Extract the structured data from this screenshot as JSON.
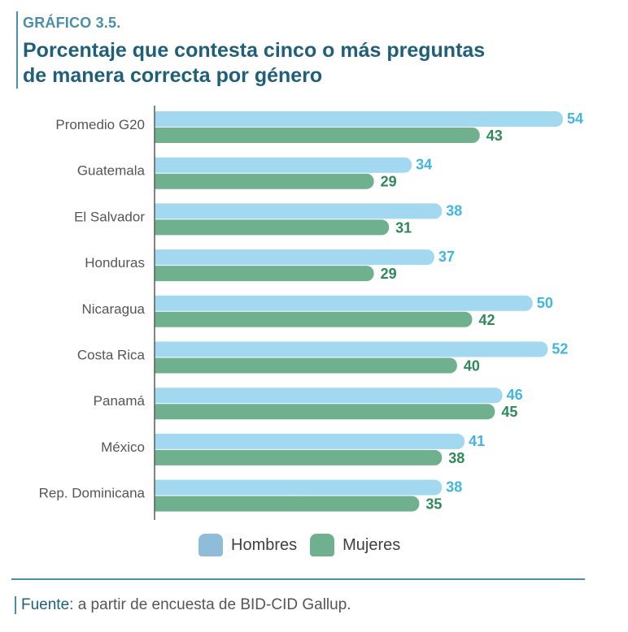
{
  "header": {
    "label": "GRÁFICO 3.5.",
    "title_line1": "Porcentaje que contesta cinco o más preguntas",
    "title_line2": "de manera correcta por género"
  },
  "colors": {
    "hombres_bar": "#a3d8f1",
    "hombres_text": "#41b6e0",
    "mujeres_bar": "#6fb08e",
    "mujeres_text": "#2e8a5a",
    "axis": "#5a5a5a",
    "category_text": "#555555"
  },
  "chart_data": {
    "type": "bar",
    "orientation": "horizontal",
    "categories": [
      "Promedio G20",
      "Guatemala",
      "El Salvador",
      "Honduras",
      "Nicaragua",
      "Costa Rica",
      "Panamá",
      "México",
      "Rep. Dominicana"
    ],
    "series": [
      {
        "name": "Hombres",
        "values": [
          54,
          34,
          38,
          37,
          50,
          52,
          46,
          41,
          38
        ]
      },
      {
        "name": "Mujeres",
        "values": [
          43,
          29,
          31,
          29,
          42,
          40,
          45,
          38,
          35
        ]
      }
    ],
    "xlim": [
      0,
      54
    ],
    "title": "Porcentaje que contesta cinco o más preguntas de manera correcta por género"
  },
  "legend": {
    "hombres": "Hombres",
    "mujeres": "Mujeres"
  },
  "source": {
    "label": "Fuente",
    "text": ": a partir de encuesta de BID-CID Gallup."
  }
}
